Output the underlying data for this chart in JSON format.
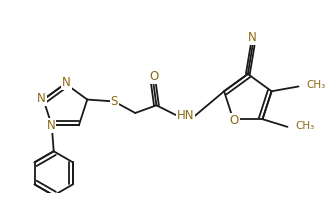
{
  "bg_color": "#ffffff",
  "line_color": "#1a1a1a",
  "atom_color": "#8B6914",
  "figsize": [
    3.26,
    1.97
  ],
  "dpi": 100,
  "N_labels": [
    "N",
    "N",
    "N"
  ],
  "S_label": "S",
  "O_label": "O",
  "HN_label": "HN",
  "CN_label": "N",
  "me_label": "CH₃"
}
